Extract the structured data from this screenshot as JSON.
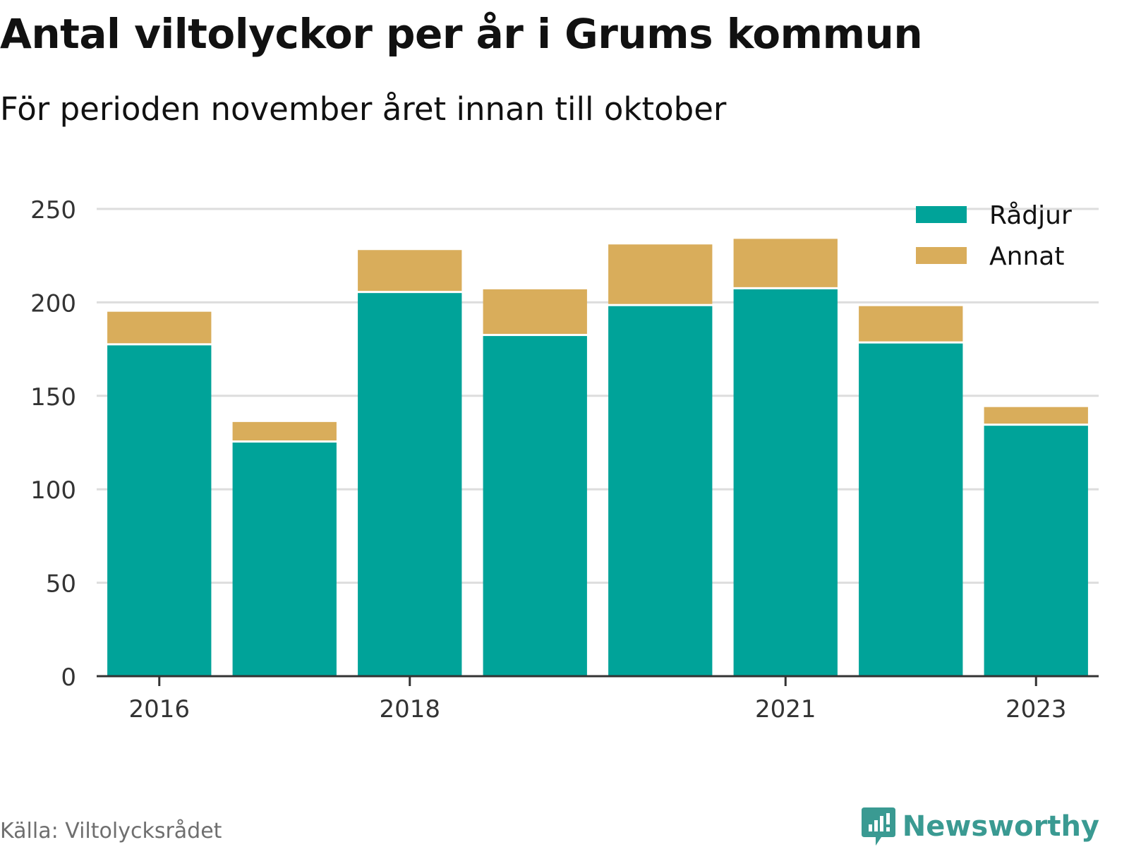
{
  "title": "Antal viltolyckor per år i Grums kommun",
  "subtitle": "För perioden november året innan till oktober",
  "source": "Källa: Viltolycksrådet",
  "brand": "Newsworthy",
  "colors": {
    "radjur": "#00a399",
    "annat": "#d9ad5b",
    "grid": "#dddddd",
    "axis": "#333333",
    "text": "#333333",
    "brand": "#3a9a92"
  },
  "chart_data": {
    "type": "bar",
    "stacked": true,
    "categories": [
      "2016",
      "2017",
      "2018",
      "2019",
      "2020",
      "2021",
      "2022",
      "2023"
    ],
    "x_tick_labels": [
      "2016",
      "2018",
      "2021",
      "2023"
    ],
    "series": [
      {
        "name": "Rådjur",
        "values": [
          177,
          125,
          205,
          182,
          198,
          207,
          178,
          134
        ]
      },
      {
        "name": "Annat",
        "values": [
          18,
          11,
          23,
          25,
          33,
          27,
          20,
          10
        ]
      }
    ],
    "y_ticks": [
      0,
      50,
      100,
      150,
      200,
      250
    ],
    "ylim": [
      0,
      250
    ],
    "grid": true,
    "legend_position": "top-right",
    "xlabel": "",
    "ylabel": ""
  }
}
